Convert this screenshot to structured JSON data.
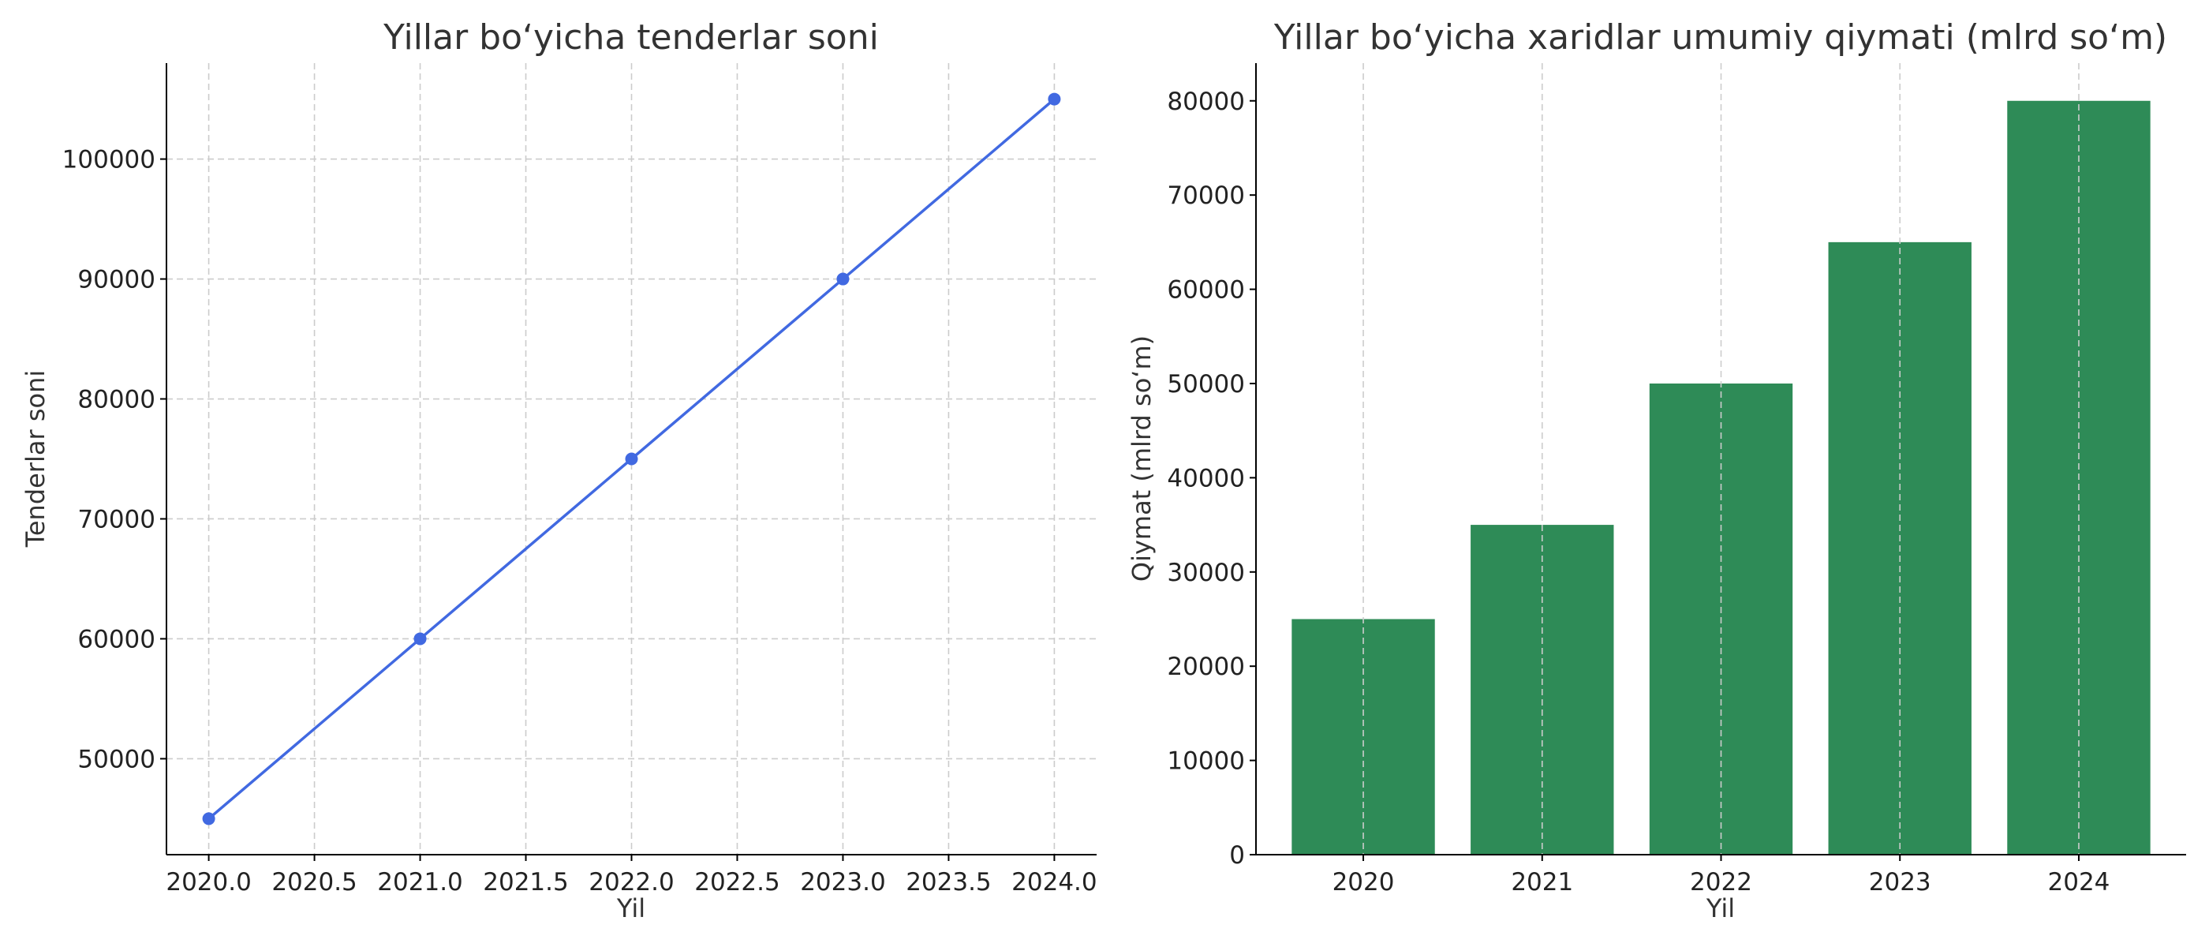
{
  "chart_data": [
    {
      "type": "line",
      "title": "Yillar bo‘yicha tenderlar soni",
      "xlabel": "Yil",
      "ylabel": "Tenderlar soni",
      "x": [
        2020,
        2021,
        2022,
        2023,
        2024
      ],
      "series": [
        {
          "values": [
            45000,
            60000,
            75000,
            90000,
            105000
          ]
        }
      ],
      "xticks": [
        "2020.0",
        "2020.5",
        "2021.0",
        "2021.5",
        "2022.0",
        "2022.5",
        "2023.0",
        "2023.5",
        "2024.0"
      ],
      "yticks": [
        "50000",
        "60000",
        "70000",
        "80000",
        "90000",
        "100000"
      ],
      "xlim": [
        2019.8,
        2024.2
      ],
      "ylim": [
        42000,
        108000
      ],
      "grid": true,
      "color": "#4169E1"
    },
    {
      "type": "bar",
      "title": "Yillar bo‘yicha xaridlar umumiy qiymati (mlrd so‘m)",
      "xlabel": "Yil",
      "ylabel": "Qiymat (mlrd so‘m)",
      "categories": [
        "2020",
        "2021",
        "2022",
        "2023",
        "2024"
      ],
      "values": [
        25000,
        35000,
        50000,
        65000,
        80000
      ],
      "yticks": [
        "0",
        "10000",
        "20000",
        "30000",
        "40000",
        "50000",
        "60000",
        "70000",
        "80000"
      ],
      "ylim": [
        0,
        84000
      ],
      "grid": true,
      "color": "#2E8B57"
    }
  ]
}
